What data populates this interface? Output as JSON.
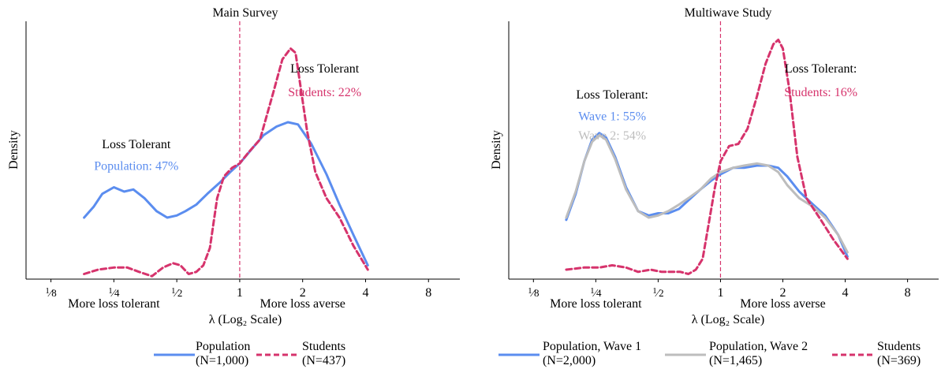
{
  "chart_data": [
    {
      "type": "line",
      "title": "Main Survey",
      "xlabel": "λ (Log₂ Scale)",
      "ylabel": "Density",
      "xscale": "log2",
      "xlim": [
        0.095,
        11.3
      ],
      "ylim": [
        0,
        1
      ],
      "xticks": [
        {
          "value": 0.125,
          "label": "1/8"
        },
        {
          "value": 0.25,
          "label": "1/4"
        },
        {
          "value": 0.5,
          "label": "1/2"
        },
        {
          "value": 1,
          "label": "1"
        },
        {
          "value": 2,
          "label": "2"
        },
        {
          "value": 4,
          "label": "4"
        },
        {
          "value": 8,
          "label": "8"
        }
      ],
      "xaxis_notes": [
        "More loss tolerant",
        "More loss averse"
      ],
      "reference_line": {
        "x": 1,
        "color": "#d6336c",
        "style": "dashed"
      },
      "annotations": [
        {
          "text": "Loss Tolerant",
          "color": "#000000",
          "x": 0.32,
          "y": 0.56
        },
        {
          "text": "Population: 47%",
          "color": "#5b8def",
          "x": 0.32,
          "y": 0.46
        },
        {
          "text": "Loss Tolerant",
          "color": "#000000",
          "x": 2.55,
          "y": 0.91
        },
        {
          "text": "Students: 22%",
          "color": "#d6336c",
          "x": 2.55,
          "y": 0.8
        }
      ],
      "series": [
        {
          "name": "Population",
          "color": "#5b8def",
          "style": "solid",
          "x": [
            0.18,
            0.2,
            0.22,
            0.25,
            0.28,
            0.31,
            0.35,
            0.4,
            0.45,
            0.5,
            0.55,
            0.62,
            0.7,
            0.8,
            0.9,
            1.0,
            1.15,
            1.3,
            1.5,
            1.7,
            1.9,
            2.2,
            2.6,
            3.0,
            3.5,
            4.1
          ],
          "y": [
            0.24,
            0.29,
            0.35,
            0.38,
            0.36,
            0.37,
            0.33,
            0.27,
            0.24,
            0.25,
            0.27,
            0.3,
            0.35,
            0.4,
            0.45,
            0.49,
            0.56,
            0.62,
            0.66,
            0.68,
            0.67,
            0.58,
            0.44,
            0.3,
            0.16,
            0.02
          ]
        },
        {
          "name": "Students",
          "color": "#d6336c",
          "style": "dashed",
          "x": [
            0.18,
            0.21,
            0.25,
            0.29,
            0.33,
            0.38,
            0.43,
            0.48,
            0.52,
            0.57,
            0.62,
            0.67,
            0.72,
            0.78,
            0.84,
            0.92,
            1.0,
            1.1,
            1.25,
            1.45,
            1.6,
            1.75,
            1.85,
            1.95,
            2.1,
            2.3,
            2.6,
            3.0,
            3.5,
            4.1
          ],
          "y": [
            -0.02,
            0.0,
            0.01,
            0.01,
            -0.01,
            -0.03,
            0.01,
            0.03,
            0.02,
            -0.02,
            -0.01,
            0.02,
            0.1,
            0.33,
            0.43,
            0.47,
            0.49,
            0.54,
            0.6,
            0.82,
            0.97,
            1.02,
            1.0,
            0.85,
            0.64,
            0.45,
            0.33,
            0.24,
            0.11,
            0.0
          ]
        }
      ],
      "legend": [
        {
          "label": "Population",
          "sub": "(N=1,000)",
          "color": "#5b8def",
          "style": "solid"
        },
        {
          "label": "Students",
          "sub": "(N=437)",
          "color": "#d6336c",
          "style": "dashed"
        }
      ]
    },
    {
      "type": "line",
      "title": "Multiwave Study",
      "xlabel": "λ (Log₂ Scale)",
      "ylabel": "Density",
      "xscale": "log2",
      "xlim": [
        0.095,
        11.3
      ],
      "ylim": [
        0,
        1
      ],
      "xticks": [
        {
          "value": 0.125,
          "label": "1/8"
        },
        {
          "value": 0.25,
          "label": "1/4"
        },
        {
          "value": 0.5,
          "label": "1/2"
        },
        {
          "value": 1,
          "label": "1"
        },
        {
          "value": 2,
          "label": "2"
        },
        {
          "value": 4,
          "label": "4"
        },
        {
          "value": 8,
          "label": "8"
        }
      ],
      "xaxis_notes": [
        "More loss tolerant",
        "More loss averse"
      ],
      "reference_line": {
        "x": 1,
        "color": "#d6336c",
        "style": "dashed"
      },
      "annotations": [
        {
          "text": "Loss Tolerant:",
          "color": "#000000",
          "x": 0.3,
          "y": 0.79
        },
        {
          "text": "Wave 1: 55%",
          "color": "#5b8def",
          "x": 0.3,
          "y": 0.69
        },
        {
          "text": "Wave 2: 54%",
          "color": "#bdbdbd",
          "x": 0.3,
          "y": 0.6
        },
        {
          "text": "Loss Tolerant:",
          "color": "#000000",
          "x": 3.05,
          "y": 0.91
        },
        {
          "text": "Students: 16%",
          "color": "#d6336c",
          "x": 3.05,
          "y": 0.8
        }
      ],
      "series": [
        {
          "name": "Population, Wave 1",
          "color": "#5b8def",
          "style": "solid",
          "x": [
            0.18,
            0.2,
            0.22,
            0.24,
            0.26,
            0.28,
            0.31,
            0.35,
            0.4,
            0.45,
            0.5,
            0.56,
            0.63,
            0.7,
            0.8,
            0.9,
            1.0,
            1.15,
            1.3,
            1.5,
            1.7,
            1.9,
            2.1,
            2.4,
            2.8,
            3.2,
            3.7,
            4.1
          ],
          "y": [
            0.23,
            0.35,
            0.5,
            0.6,
            0.63,
            0.61,
            0.52,
            0.38,
            0.27,
            0.25,
            0.26,
            0.26,
            0.28,
            0.32,
            0.37,
            0.41,
            0.44,
            0.47,
            0.47,
            0.48,
            0.48,
            0.47,
            0.43,
            0.36,
            0.3,
            0.25,
            0.16,
            0.06
          ]
        },
        {
          "name": "Population, Wave 2",
          "color": "#bdbdbd",
          "style": "solid",
          "x": [
            0.18,
            0.2,
            0.22,
            0.24,
            0.26,
            0.28,
            0.31,
            0.35,
            0.4,
            0.45,
            0.5,
            0.56,
            0.63,
            0.7,
            0.8,
            0.9,
            1.0,
            1.15,
            1.3,
            1.5,
            1.7,
            1.9,
            2.1,
            2.4,
            2.8,
            3.2,
            3.7,
            4.1
          ],
          "y": [
            0.24,
            0.36,
            0.5,
            0.59,
            0.62,
            0.6,
            0.51,
            0.37,
            0.27,
            0.24,
            0.25,
            0.27,
            0.3,
            0.33,
            0.37,
            0.42,
            0.45,
            0.47,
            0.48,
            0.49,
            0.48,
            0.45,
            0.39,
            0.33,
            0.29,
            0.24,
            0.16,
            0.08
          ]
        },
        {
          "name": "Students",
          "color": "#d6336c",
          "style": "dashed",
          "x": [
            0.18,
            0.22,
            0.26,
            0.3,
            0.35,
            0.4,
            0.46,
            0.52,
            0.58,
            0.64,
            0.7,
            0.76,
            0.82,
            0.88,
            0.94,
            1.0,
            1.1,
            1.22,
            1.35,
            1.5,
            1.65,
            1.8,
            1.9,
            2.0,
            2.15,
            2.35,
            2.6,
            3.0,
            3.5,
            4.1
          ],
          "y": [
            0.0,
            0.01,
            0.01,
            0.02,
            0.01,
            -0.01,
            0.0,
            -0.01,
            -0.01,
            -0.01,
            -0.02,
            0.0,
            0.05,
            0.22,
            0.38,
            0.5,
            0.57,
            0.58,
            0.65,
            0.8,
            0.95,
            1.04,
            1.06,
            1.02,
            0.83,
            0.52,
            0.33,
            0.24,
            0.14,
            0.05
          ]
        }
      ],
      "legend": [
        {
          "label": "Population, Wave 1",
          "sub": "(N=2,000)",
          "color": "#5b8def",
          "style": "solid"
        },
        {
          "label": "Population, Wave 2",
          "sub": "(N=1,465)",
          "color": "#bdbdbd",
          "style": "solid"
        },
        {
          "label": "Students",
          "sub": "(N=369)",
          "color": "#d6336c",
          "style": "dashed"
        }
      ]
    }
  ]
}
